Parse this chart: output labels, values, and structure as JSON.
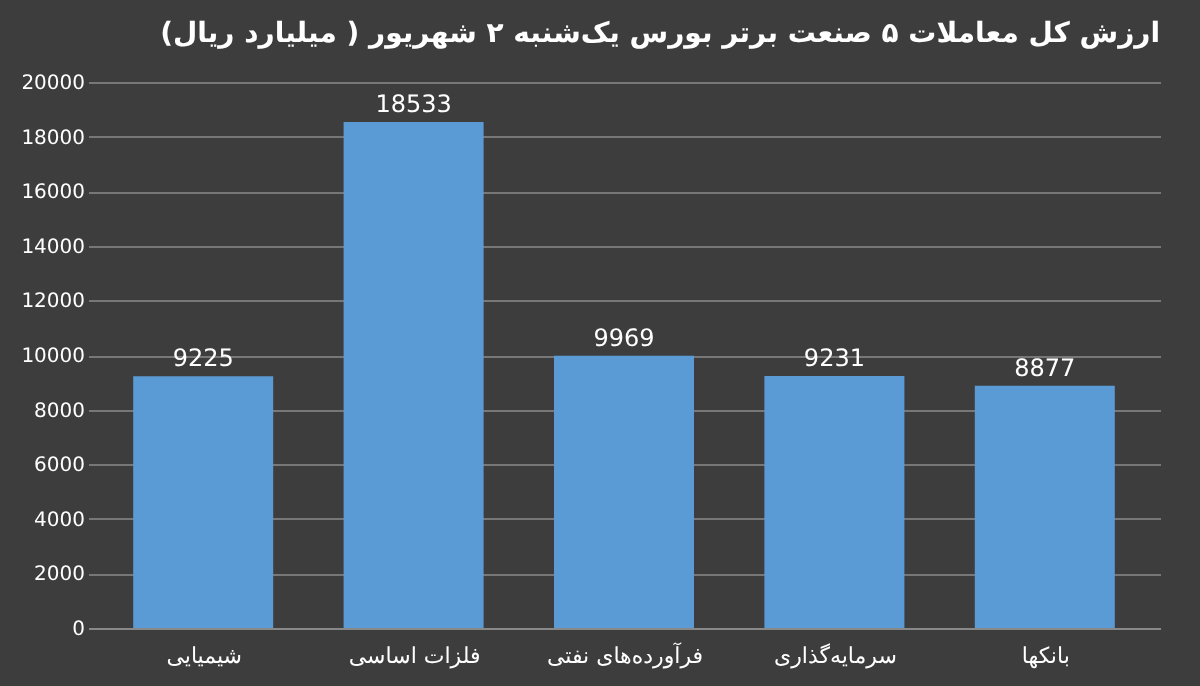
{
  "chart_data": {
    "type": "bar",
    "title": "ارزش کل معاملات ۵ صنعت برتر بورس یک‌شنبه ۲ شهریور ( میلیارد ریال)",
    "categories": [
      "شیمیایی",
      "فلزات اساسی",
      "فرآورده‌های نفتی",
      "سرمایه‌گذاری",
      "بانکها"
    ],
    "values": [
      9225,
      18533,
      9969,
      9231,
      8877
    ],
    "color": "#5b9bd5",
    "ylim": [
      0,
      20000
    ],
    "yticks": [
      0,
      2000,
      4000,
      6000,
      8000,
      10000,
      12000,
      14000,
      16000,
      18000,
      20000
    ],
    "grid": "y",
    "data_labels": true
  }
}
